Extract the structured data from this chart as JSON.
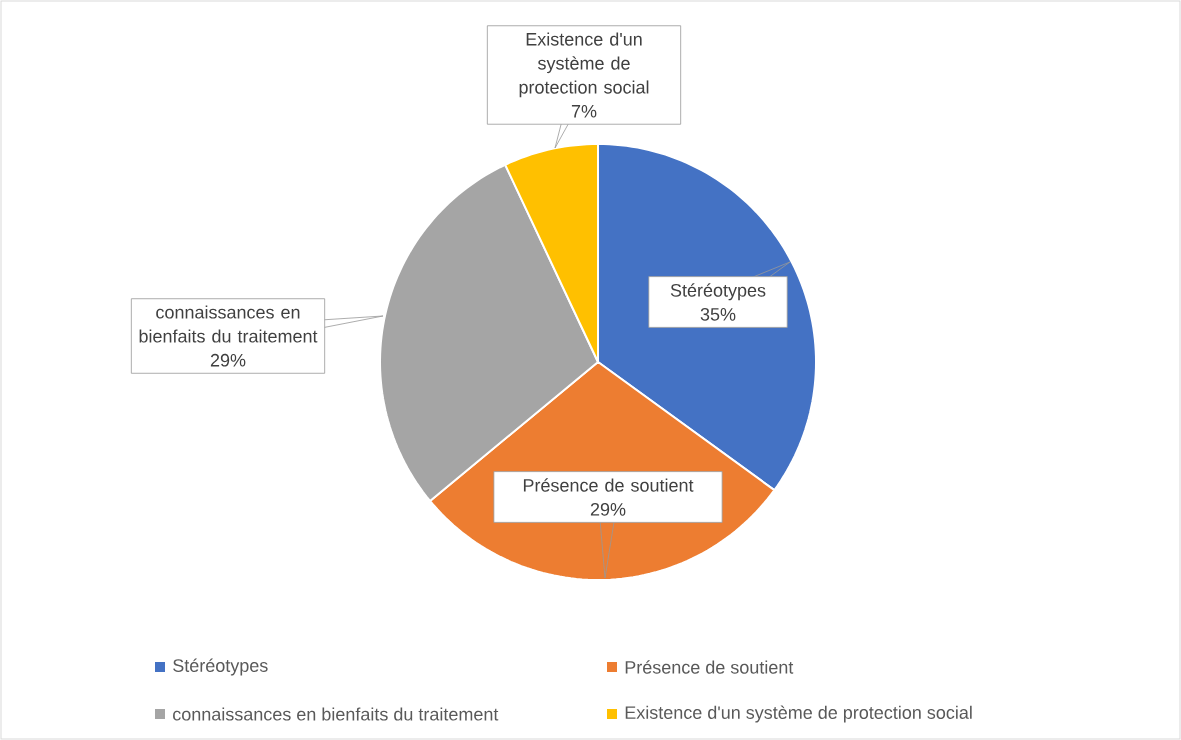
{
  "chart_data": {
    "type": "pie",
    "categories": [
      "Stéréotypes",
      "Présence de soutient",
      "connaissances en bienfaits du traitement",
      "Existence d'un système de protection social"
    ],
    "values": [
      35,
      29,
      29,
      7
    ],
    "value_labels": [
      "35%",
      "29%",
      "29%",
      "7%"
    ],
    "colors": [
      "#4472c4",
      "#ed7d31",
      "#a5a5a5",
      "#ffc000"
    ],
    "legend": "bottom"
  }
}
